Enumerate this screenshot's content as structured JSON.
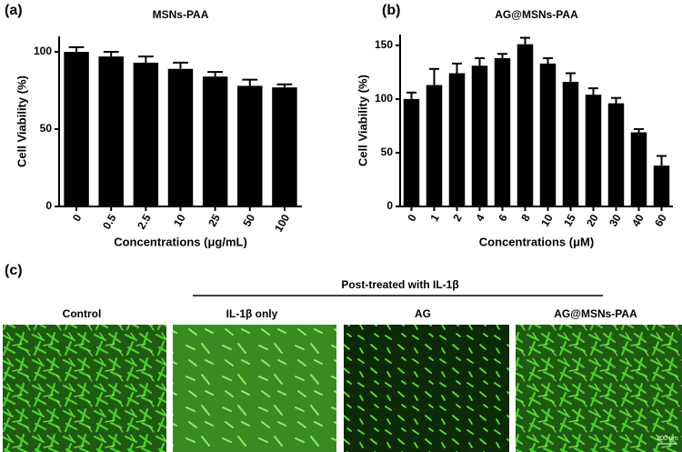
{
  "chart_data": [
    {
      "type": "bar",
      "panel": "(a)",
      "title": "MSNs-PAA",
      "x_label": "Concentrations (μg/mL)",
      "y_label": "Cell Viability (%)",
      "categories": [
        "0",
        "0.5",
        "2.5",
        "10",
        "25",
        "50",
        "100"
      ],
      "values": [
        100,
        97,
        93,
        89,
        84,
        78,
        77
      ],
      "errors": [
        3,
        3,
        4,
        4,
        3,
        4,
        2
      ],
      "color": "#000000",
      "ylim": [
        0,
        110
      ],
      "yticks": [
        0,
        50,
        100
      ]
    },
    {
      "type": "bar",
      "panel": "(b)",
      "title": "AG@MSNs-PAA",
      "x_label": "Concentrations (μM)",
      "y_label": "Cell Viability (%)",
      "categories": [
        "0",
        "1",
        "2",
        "4",
        "6",
        "8",
        "10",
        "15",
        "20",
        "30",
        "40",
        "60"
      ],
      "values": [
        100,
        113,
        124,
        131,
        138,
        151,
        133,
        116,
        104,
        96,
        69,
        38
      ],
      "errors": [
        6,
        15,
        9,
        7,
        4,
        6,
        5,
        8,
        6,
        5,
        3,
        9
      ],
      "color": "#000000",
      "ylim": [
        0,
        160
      ],
      "yticks": [
        0,
        50,
        100,
        150
      ]
    }
  ],
  "panel_c": {
    "label": "(c)",
    "heading": "Post-treated with IL-1β",
    "images": [
      {
        "label": "Control"
      },
      {
        "label": "IL-1β only"
      },
      {
        "label": "AG"
      },
      {
        "label": "AG@MSNs-PAA"
      }
    ],
    "scale_bar": "200 μm"
  }
}
